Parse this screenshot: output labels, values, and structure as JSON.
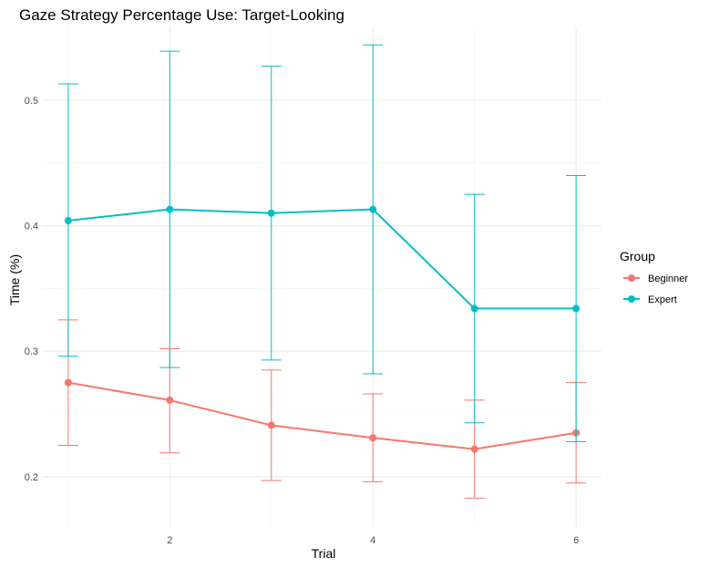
{
  "chart_data": {
    "type": "line",
    "title": "Gaze Strategy Percentage Use: Target-Looking",
    "xlabel": "Trial",
    "ylabel": "Time (%)",
    "x": [
      1,
      2,
      3,
      4,
      5,
      6
    ],
    "x_ticks": [
      2,
      4,
      6
    ],
    "x_tick_labels": [
      "2",
      "4",
      "6"
    ],
    "xlim": [
      0.75,
      6.25
    ],
    "y_ticks": [
      0.2,
      0.3,
      0.4,
      0.5
    ],
    "y_tick_labels": [
      "0.2",
      "0.3",
      "0.4",
      "0.5"
    ],
    "ylim": [
      0.16,
      0.558
    ],
    "grid": true,
    "legend": {
      "title": "Group",
      "position": "right"
    },
    "series": [
      {
        "name": "Beginner",
        "color": "#F8766D",
        "values": [
          0.275,
          0.261,
          0.241,
          0.231,
          0.222,
          0.235
        ],
        "lower": [
          0.225,
          0.219,
          0.197,
          0.196,
          0.183,
          0.195
        ],
        "upper": [
          0.325,
          0.302,
          0.285,
          0.266,
          0.261,
          0.275
        ]
      },
      {
        "name": "Expert",
        "color": "#00BFC4",
        "values": [
          0.404,
          0.413,
          0.41,
          0.413,
          0.334,
          0.334
        ],
        "lower": [
          0.296,
          0.287,
          0.293,
          0.282,
          0.243,
          0.228
        ],
        "upper": [
          0.513,
          0.539,
          0.527,
          0.544,
          0.425,
          0.44
        ]
      }
    ]
  }
}
